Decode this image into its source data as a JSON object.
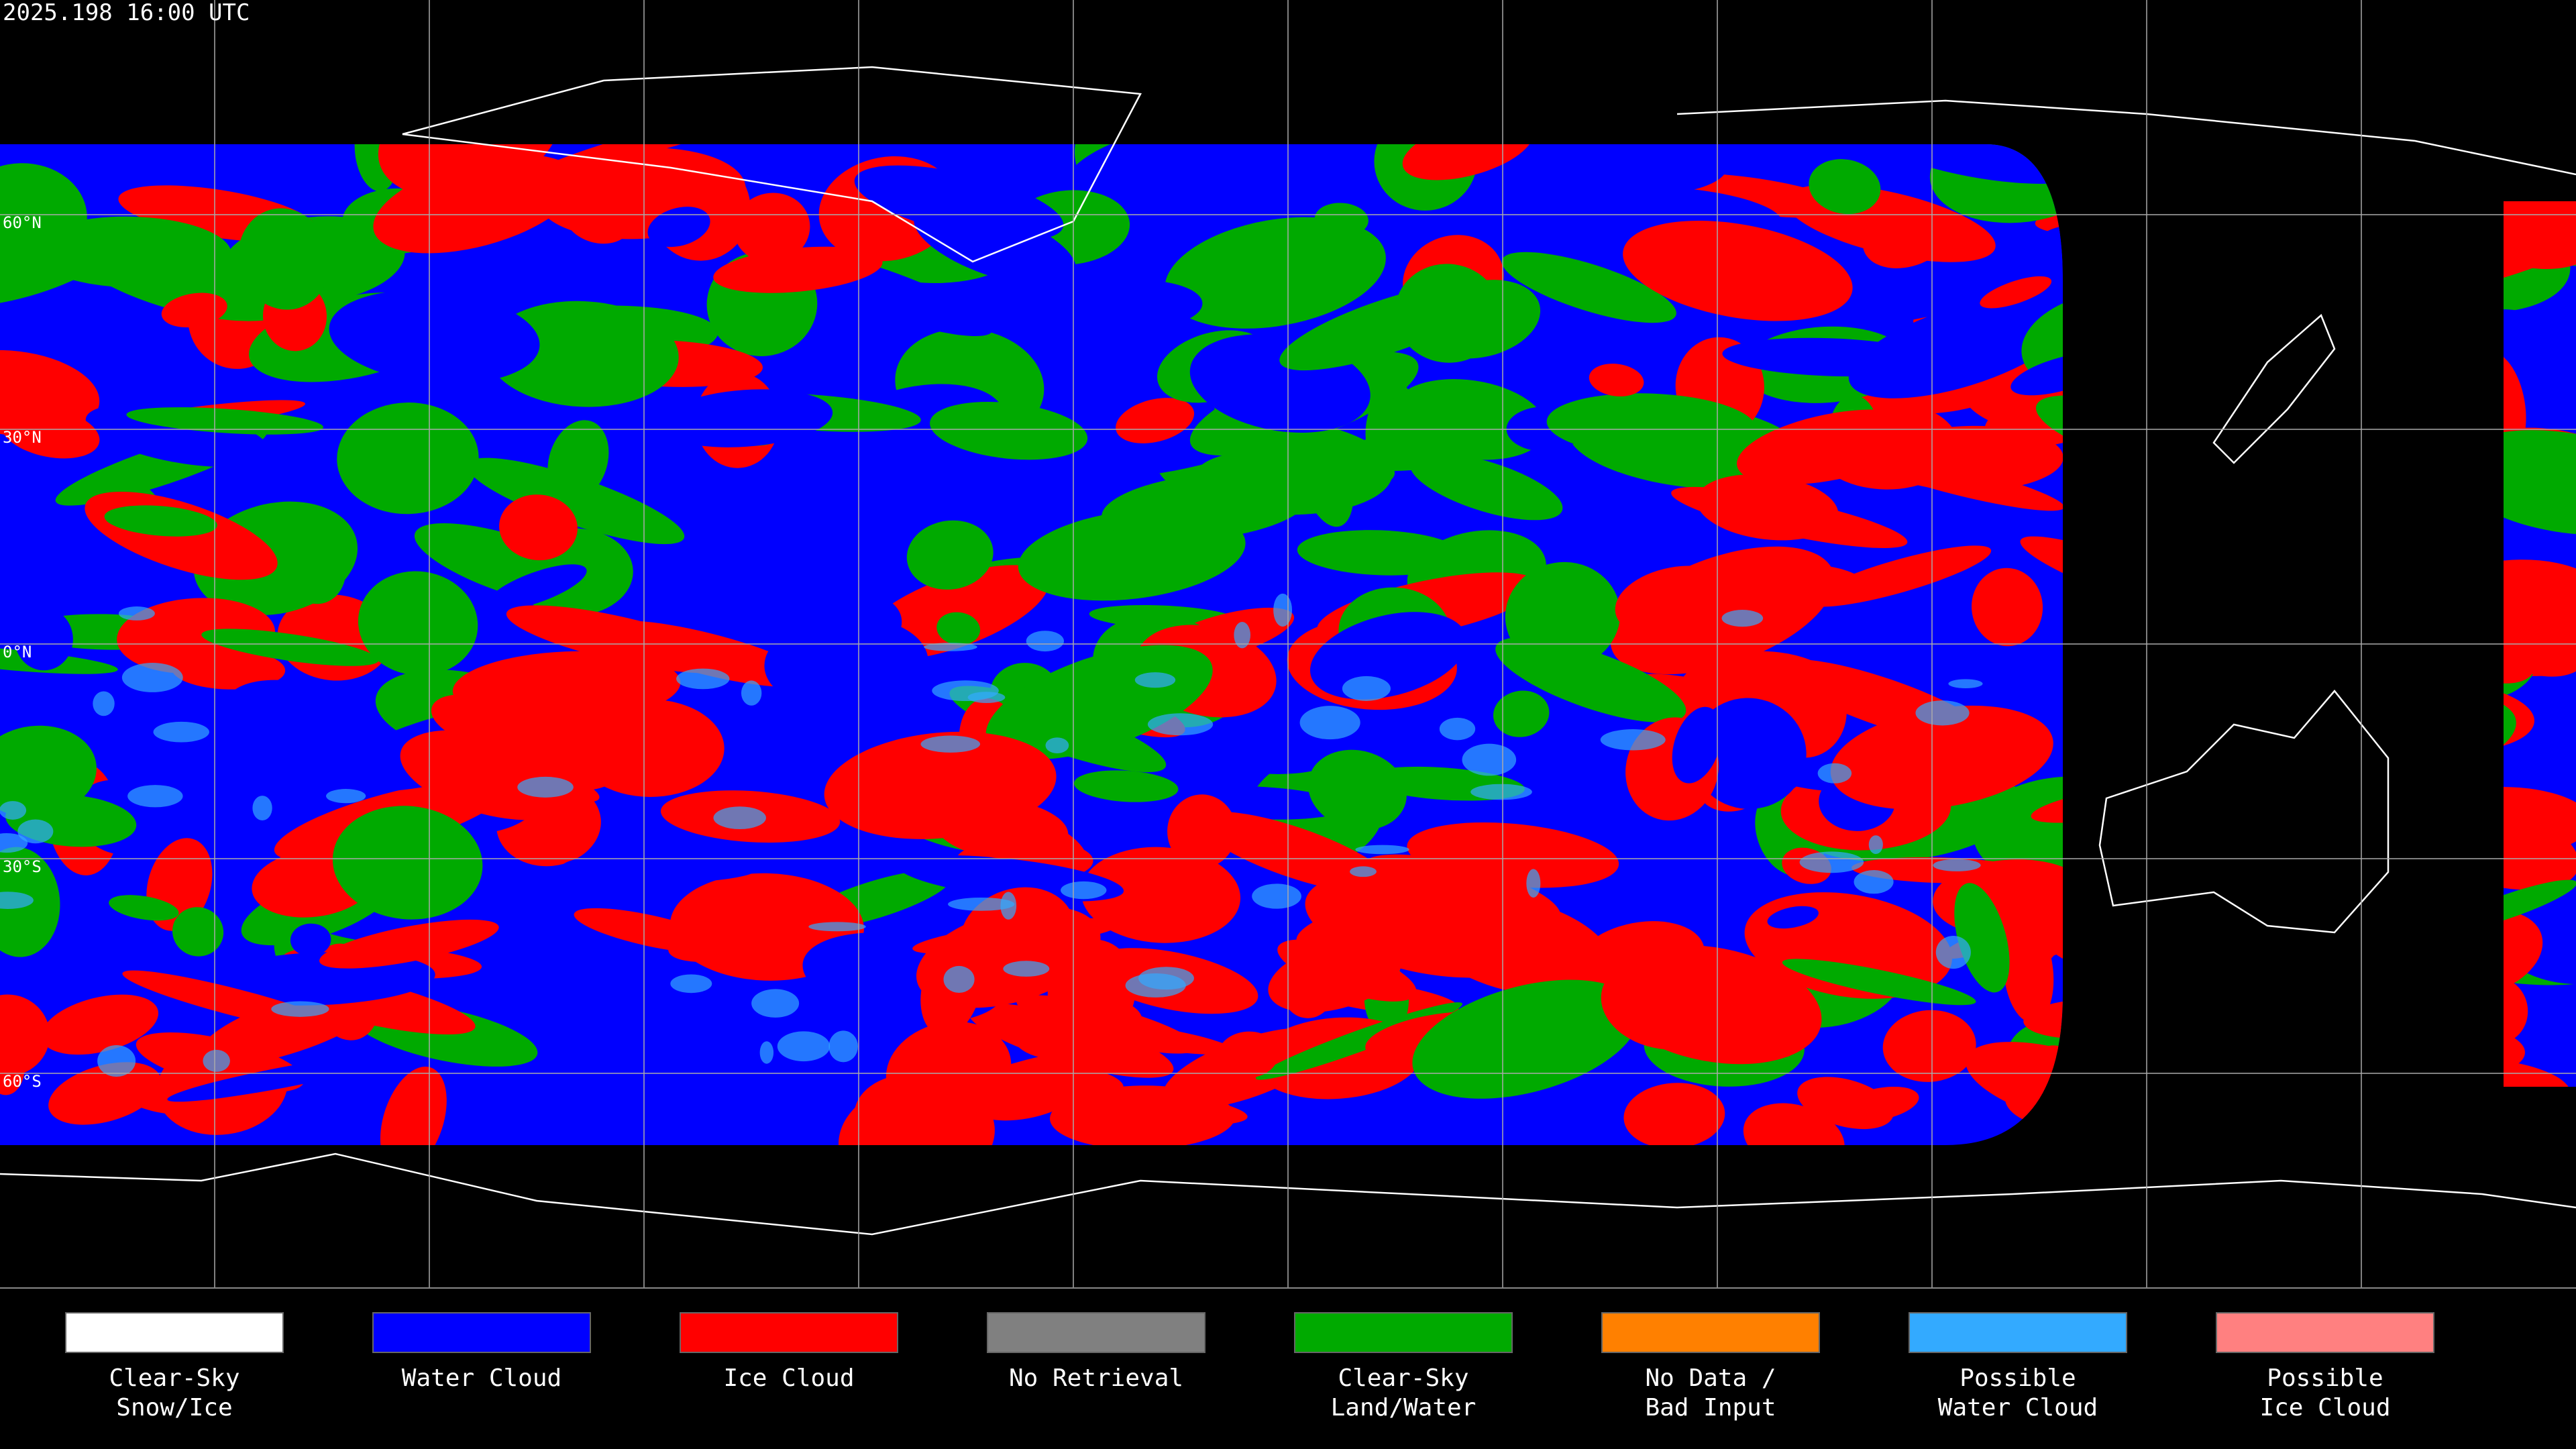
{
  "header": {
    "title": "2025.198 16:00 UTC"
  },
  "map": {
    "lat_labels": [
      "60°N",
      "30°N",
      "0°N",
      "30°S",
      "60°S"
    ]
  },
  "legend": {
    "items": [
      {
        "label": [
          "Clear-Sky",
          "Snow/Ice"
        ],
        "color": "#ffffff"
      },
      {
        "label": [
          "Water Cloud"
        ],
        "color": "#0000ff"
      },
      {
        "label": [
          "Ice Cloud"
        ],
        "color": "#ff0000"
      },
      {
        "label": [
          "No Retrieval"
        ],
        "color": "#808080"
      },
      {
        "label": [
          "Clear-Sky",
          "Land/Water"
        ],
        "color": "#00aa00"
      },
      {
        "label": [
          "No Data /",
          "Bad Input"
        ],
        "color": "#ff8000"
      },
      {
        "label": [
          "Possible",
          "Water Cloud"
        ],
        "color": "#33aaff"
      },
      {
        "label": [
          "Possible",
          "Ice Cloud"
        ],
        "color": "#ff8080"
      }
    ]
  }
}
